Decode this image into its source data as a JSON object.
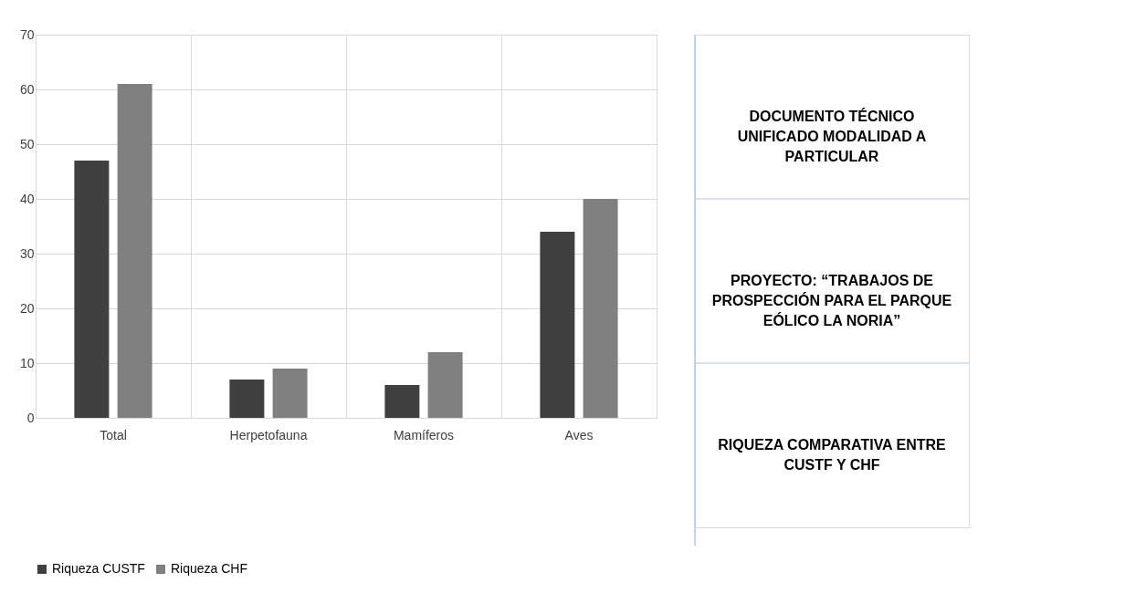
{
  "chart_data": {
    "type": "bar",
    "categories": [
      "Total",
      "Herpetofauna",
      "Mamíferos",
      "Aves"
    ],
    "series": [
      {
        "name": "Riqueza CUSTF",
        "color": "#404040",
        "values": [
          47,
          7,
          6,
          34
        ]
      },
      {
        "name": "Riqueza CHF",
        "color": "#808080",
        "values": [
          61,
          9,
          12,
          40
        ]
      }
    ],
    "ylim": [
      0,
      70
    ],
    "yticks": [
      0,
      10,
      20,
      30,
      40,
      50,
      60,
      70
    ],
    "grid": true,
    "legend": "bottom",
    "annotations": [
      "DOCUMENTO TÉCNICO UNIFICADO MODALIDAD A PARTICULAR",
      "PROYECTO: “TRABAJOS DE PROSPECCIÓN PARA EL PARQUE EÓLICO LA NORIA”",
      "RIQUEZA COMPARATIVA ENTRE CUSTF Y CHF"
    ]
  }
}
